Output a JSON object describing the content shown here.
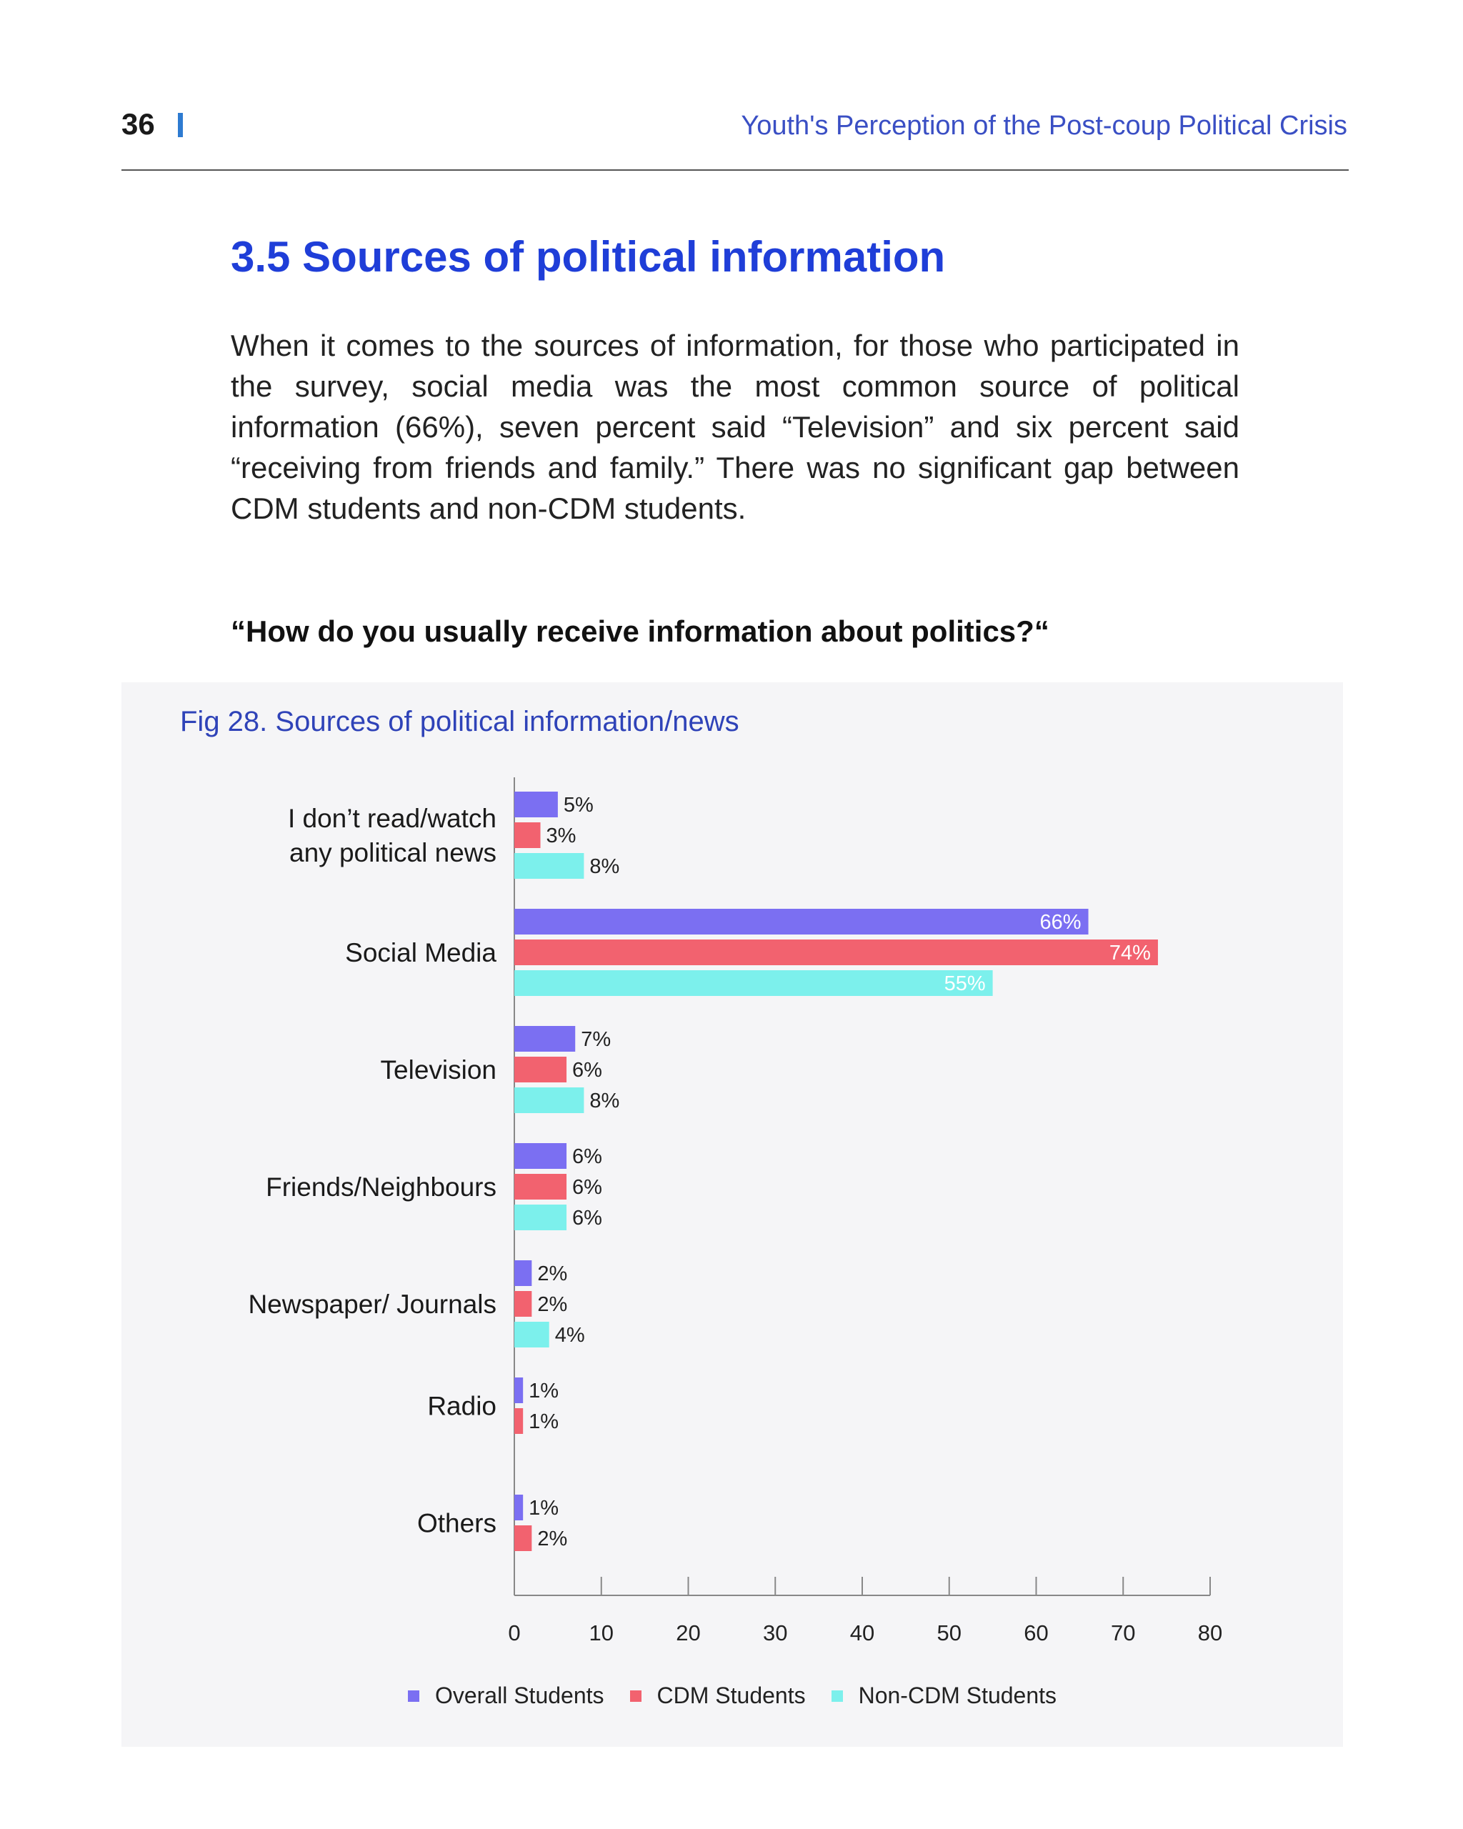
{
  "header": {
    "page_number": "36",
    "running_title": "Youth's Perception of the Post-coup Political Crisis"
  },
  "section": {
    "title": "3.5 Sources of political information",
    "paragraph": "When it comes to the sources of information, for those who participated in the survey, social media was the most common source of political information (66%), seven percent said “Television” and six percent said “receiving from friends and family.” There was no significant gap between CDM students and non-CDM students.",
    "question": "“How do you usually receive information about politics?“"
  },
  "figure": {
    "title": "Fig 28. Sources of political information/news"
  },
  "colors": {
    "overall": "#7b6ff2",
    "cdm": "#f2626f",
    "noncdm": "#7cf0ec"
  },
  "chart_data": {
    "type": "bar",
    "orientation": "horizontal",
    "title": "Fig 28. Sources of political information/news",
    "categories": [
      "I don't read/watch any political news",
      "Social Media",
      "Television",
      "Friends/Neighbours",
      "Newspaper/ Journals",
      "Radio",
      "Others"
    ],
    "category_lines": [
      [
        "I don’t read/watch",
        "any political news"
      ],
      [
        "Social Media"
      ],
      [
        "Television"
      ],
      [
        "Friends/Neighbours"
      ],
      [
        "Newspaper/ Journals"
      ],
      [
        "Radio"
      ],
      [
        "Others"
      ]
    ],
    "series": [
      {
        "name": "Overall Students",
        "key": "overall",
        "values": [
          5,
          66,
          7,
          6,
          2,
          1,
          1
        ]
      },
      {
        "name": "CDM Students",
        "key": "cdm",
        "values": [
          3,
          74,
          6,
          6,
          2,
          1,
          2
        ]
      },
      {
        "name": "Non-CDM Students",
        "key": "noncdm",
        "values": [
          8,
          55,
          8,
          6,
          4,
          null,
          null
        ]
      }
    ],
    "xlim": [
      0,
      80
    ],
    "xticks": [
      0,
      10,
      20,
      30,
      40,
      50,
      60,
      70,
      80
    ],
    "value_suffix": "%",
    "legend_position": "bottom",
    "grid": false
  }
}
